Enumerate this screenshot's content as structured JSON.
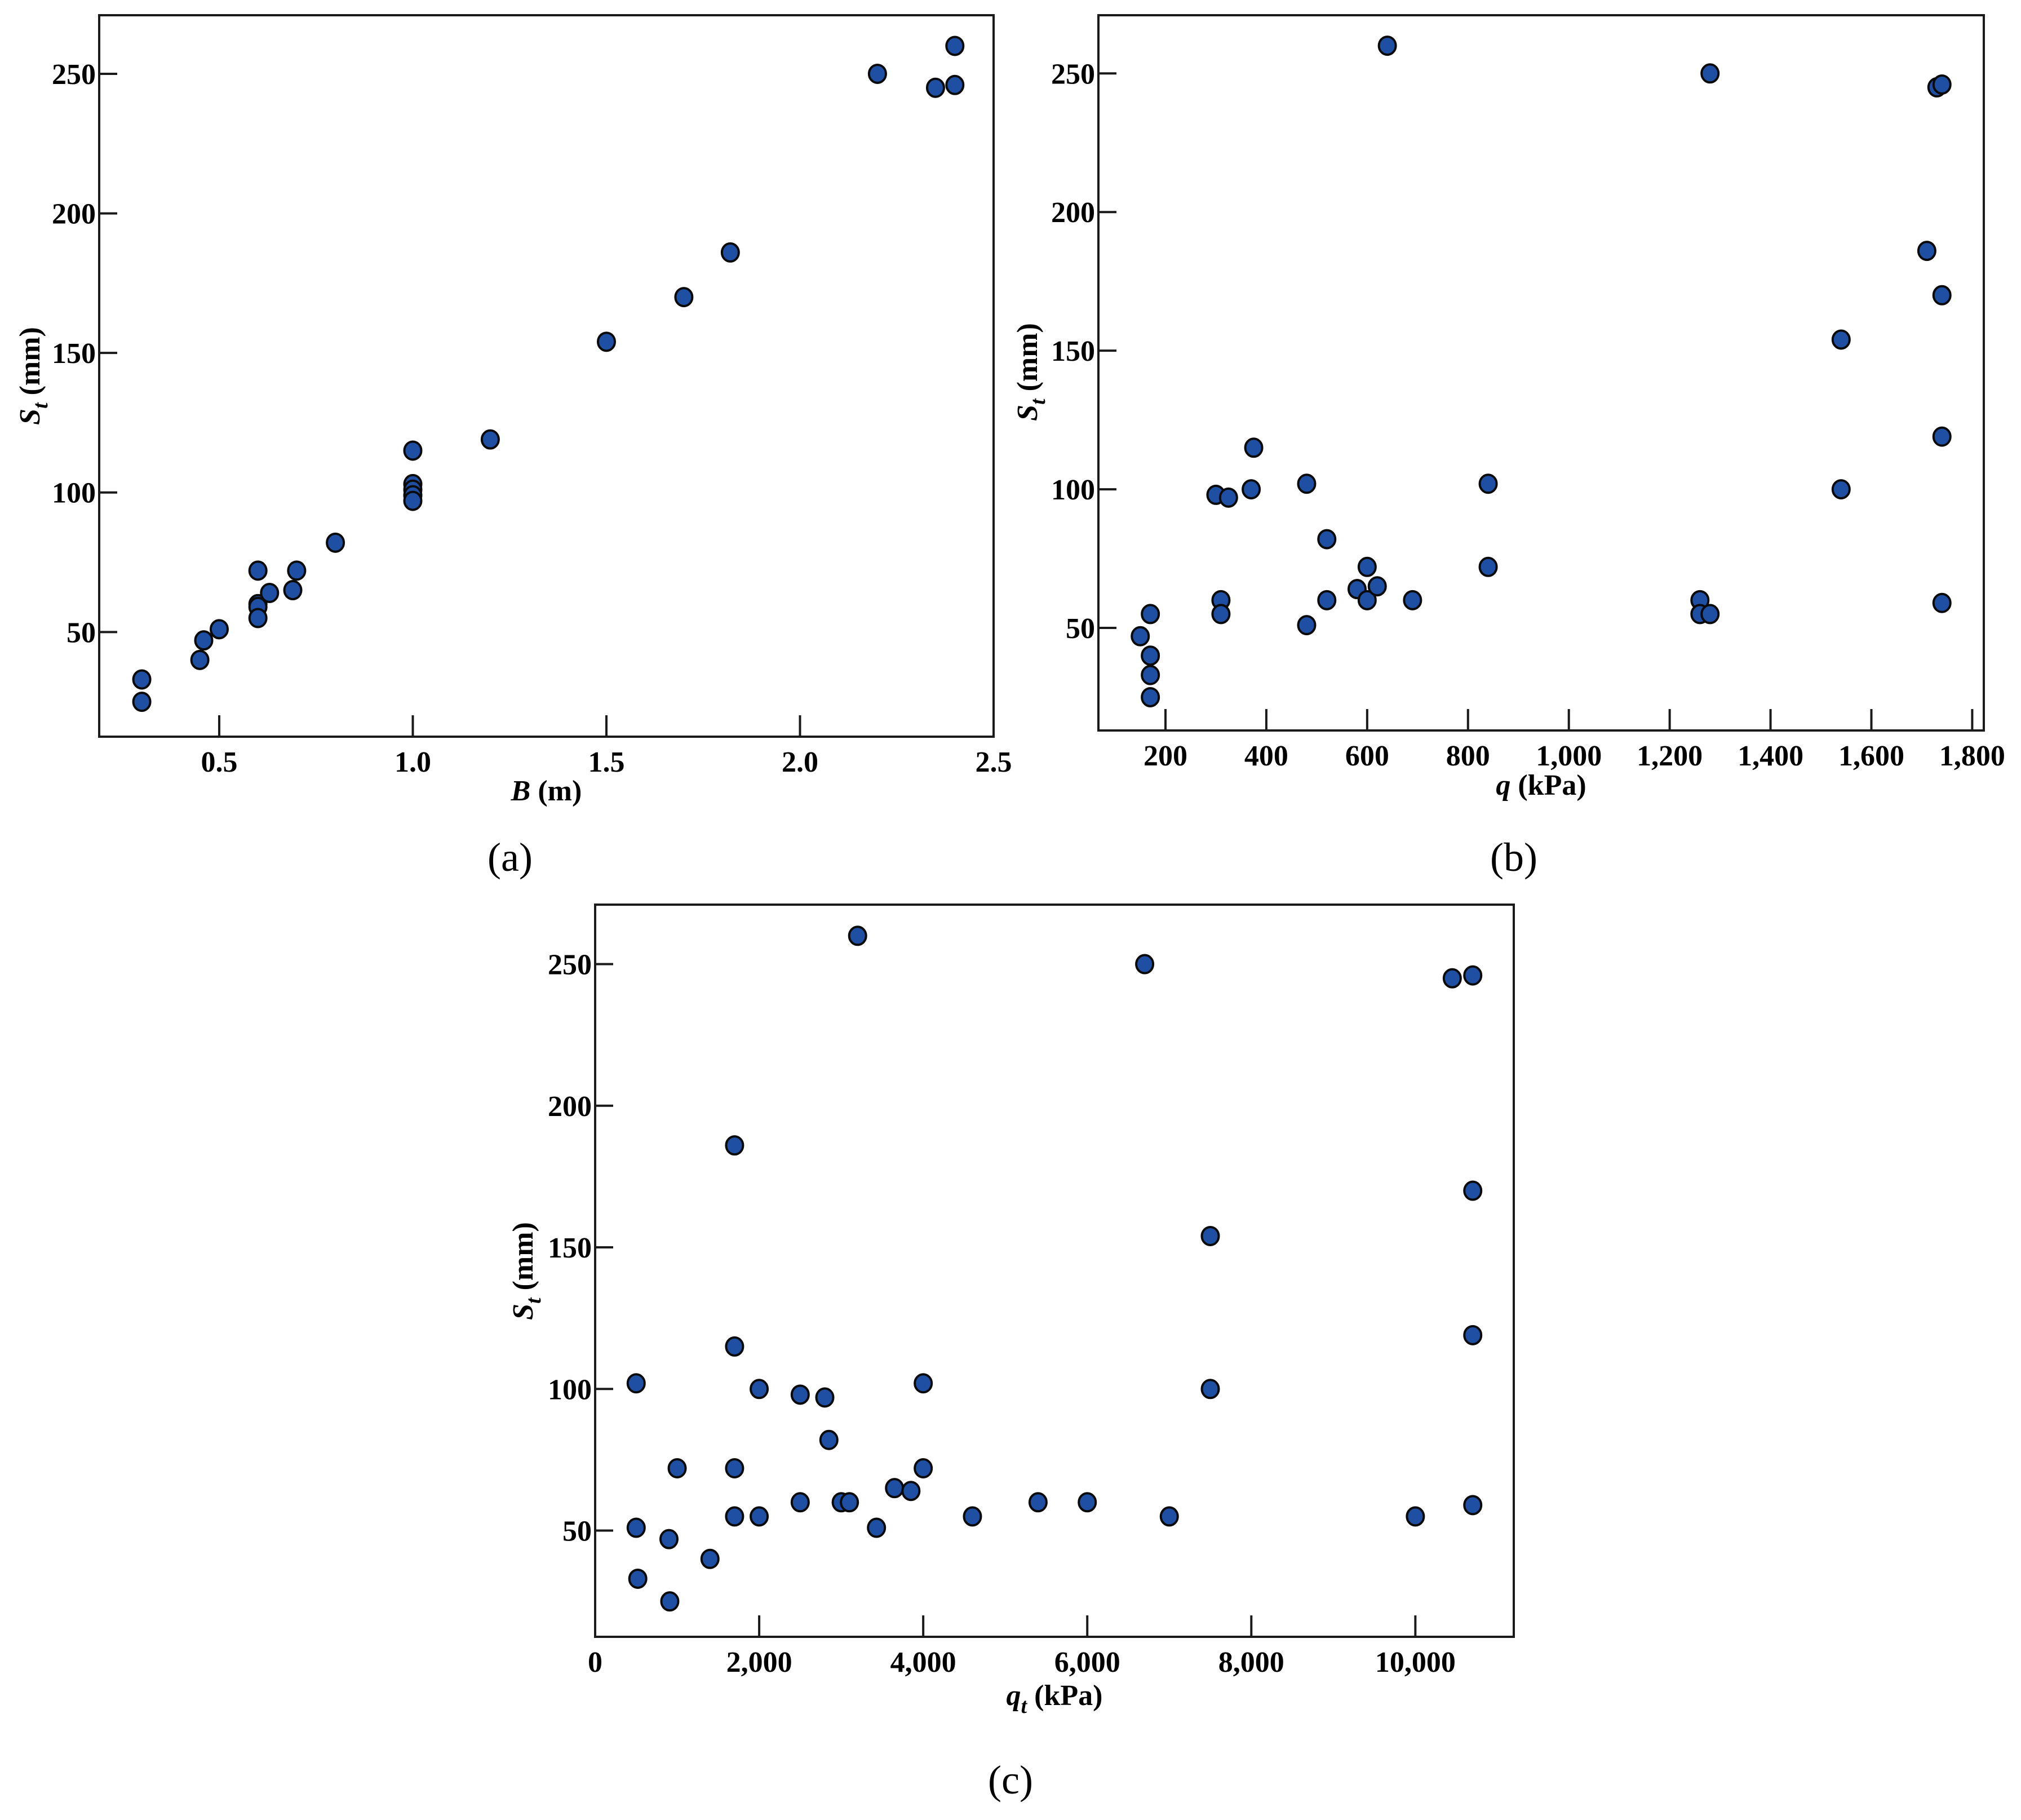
{
  "figure": {
    "panel_labels": [
      "(a)",
      "(b)",
      "(c)"
    ],
    "marker_color": "#1f4fa3",
    "marker_edge_color": "#0a0a0a"
  },
  "chart_data": [
    {
      "type": "scatter",
      "id": "a",
      "panel_label": "(a)",
      "title": "",
      "xlabel_main": "B",
      "xlabel_unit": "(m)",
      "ylabel_main": "S",
      "ylabel_sub": "t",
      "ylabel_unit": "(mm)",
      "xlim": [
        0.19,
        2.5
      ],
      "ylim": [
        12.5,
        271
      ],
      "xticks": [
        0.5,
        1.0,
        1.5,
        2.0,
        2.5
      ],
      "xtick_labels": [
        "0.5",
        "1.0",
        "1.5",
        "2.0",
        "2.5"
      ],
      "yticks": [
        50,
        100,
        150,
        200,
        250
      ],
      "ytick_labels": [
        "50",
        "100",
        "150",
        "200",
        "250"
      ],
      "grid": false,
      "points": [
        [
          0.3,
          33
        ],
        [
          0.3,
          25
        ],
        [
          0.45,
          40
        ],
        [
          0.46,
          47
        ],
        [
          0.5,
          51
        ],
        [
          0.6,
          72
        ],
        [
          0.6,
          60
        ],
        [
          0.6,
          59
        ],
        [
          0.6,
          55
        ],
        [
          0.63,
          64
        ],
        [
          0.69,
          65
        ],
        [
          0.7,
          72
        ],
        [
          0.8,
          82
        ],
        [
          1.0,
          115
        ],
        [
          1.0,
          103
        ],
        [
          1.0,
          101
        ],
        [
          1.0,
          99
        ],
        [
          1.0,
          97
        ],
        [
          1.2,
          119
        ],
        [
          1.5,
          154
        ],
        [
          1.7,
          170
        ],
        [
          1.82,
          186
        ],
        [
          2.2,
          250
        ],
        [
          2.35,
          245
        ],
        [
          2.4,
          246
        ],
        [
          2.4,
          260
        ]
      ]
    },
    {
      "type": "scatter",
      "id": "b",
      "panel_label": "(b)",
      "title": "",
      "xlabel_main": "q",
      "xlabel_unit": "(kPa)",
      "ylabel_main": "S",
      "ylabel_sub": "t",
      "ylabel_unit": "(mm)",
      "xlim": [
        67,
        1823
      ],
      "ylim": [
        13,
        271
      ],
      "xticks": [
        200,
        400,
        600,
        800,
        1000,
        1200,
        1400,
        1600,
        1800
      ],
      "xtick_labels": [
        "200",
        "400",
        "600",
        "800",
        "1,000",
        "1,200",
        "1,400",
        "1,600",
        "1,800"
      ],
      "yticks": [
        50,
        100,
        150,
        200,
        250
      ],
      "ytick_labels": [
        "50",
        "100",
        "150",
        "200",
        "250"
      ],
      "grid": false,
      "points": [
        [
          150,
          47
        ],
        [
          170,
          55
        ],
        [
          170,
          40
        ],
        [
          170,
          33
        ],
        [
          170,
          25
        ],
        [
          300,
          98
        ],
        [
          310,
          60
        ],
        [
          310,
          55
        ],
        [
          325,
          97
        ],
        [
          370,
          100
        ],
        [
          375,
          115
        ],
        [
          480,
          102
        ],
        [
          480,
          51
        ],
        [
          520,
          82
        ],
        [
          520,
          60
        ],
        [
          580,
          64
        ],
        [
          600,
          72
        ],
        [
          600,
          60
        ],
        [
          620,
          65
        ],
        [
          690,
          60
        ],
        [
          640,
          260
        ],
        [
          840,
          102
        ],
        [
          840,
          72
        ],
        [
          1260,
          60
        ],
        [
          1260,
          55
        ],
        [
          1280,
          55
        ],
        [
          1280,
          250
        ],
        [
          1540,
          154
        ],
        [
          1540,
          100
        ],
        [
          1710,
          186
        ],
        [
          1730,
          245
        ],
        [
          1740,
          246
        ],
        [
          1740,
          170
        ],
        [
          1740,
          119
        ],
        [
          1740,
          59
        ]
      ]
    },
    {
      "type": "scatter",
      "id": "c",
      "panel_label": "(c)",
      "title": "",
      "xlabel_main": "q",
      "xlabel_sub": "t",
      "xlabel_unit": "(kPa)",
      "ylabel_main": "S",
      "ylabel_sub": "t",
      "ylabel_unit": "(mm)",
      "xlim": [
        0,
        11200
      ],
      "ylim": [
        12.5,
        271
      ],
      "xticks": [
        0,
        2000,
        4000,
        6000,
        8000,
        10000
      ],
      "xtick_labels": [
        "0",
        "2,000",
        "4,000",
        "6,000",
        "8,000",
        "10,000"
      ],
      "yticks": [
        50,
        100,
        150,
        200,
        250
      ],
      "ytick_labels": [
        "50",
        "100",
        "150",
        "200",
        "250"
      ],
      "grid": false,
      "points": [
        [
          500,
          102
        ],
        [
          500,
          51
        ],
        [
          520,
          33
        ],
        [
          900,
          47
        ],
        [
          910,
          25
        ],
        [
          1000,
          72
        ],
        [
          1400,
          40
        ],
        [
          1700,
          186
        ],
        [
          1700,
          115
        ],
        [
          1700,
          72
        ],
        [
          1700,
          55
        ],
        [
          2000,
          100
        ],
        [
          2000,
          55
        ],
        [
          2500,
          98
        ],
        [
          2500,
          60
        ],
        [
          2800,
          97
        ],
        [
          2850,
          82
        ],
        [
          3000,
          60
        ],
        [
          3100,
          60
        ],
        [
          3200,
          260
        ],
        [
          3430,
          51
        ],
        [
          3650,
          65
        ],
        [
          3850,
          64
        ],
        [
          4000,
          102
        ],
        [
          4000,
          72
        ],
        [
          4600,
          55
        ],
        [
          5400,
          60
        ],
        [
          6000,
          60
        ],
        [
          6700,
          250
        ],
        [
          7000,
          55
        ],
        [
          7500,
          154
        ],
        [
          7500,
          100
        ],
        [
          10000,
          55
        ],
        [
          10450,
          245
        ],
        [
          10700,
          246
        ],
        [
          10700,
          170
        ],
        [
          10700,
          119
        ],
        [
          10700,
          59
        ]
      ]
    }
  ]
}
